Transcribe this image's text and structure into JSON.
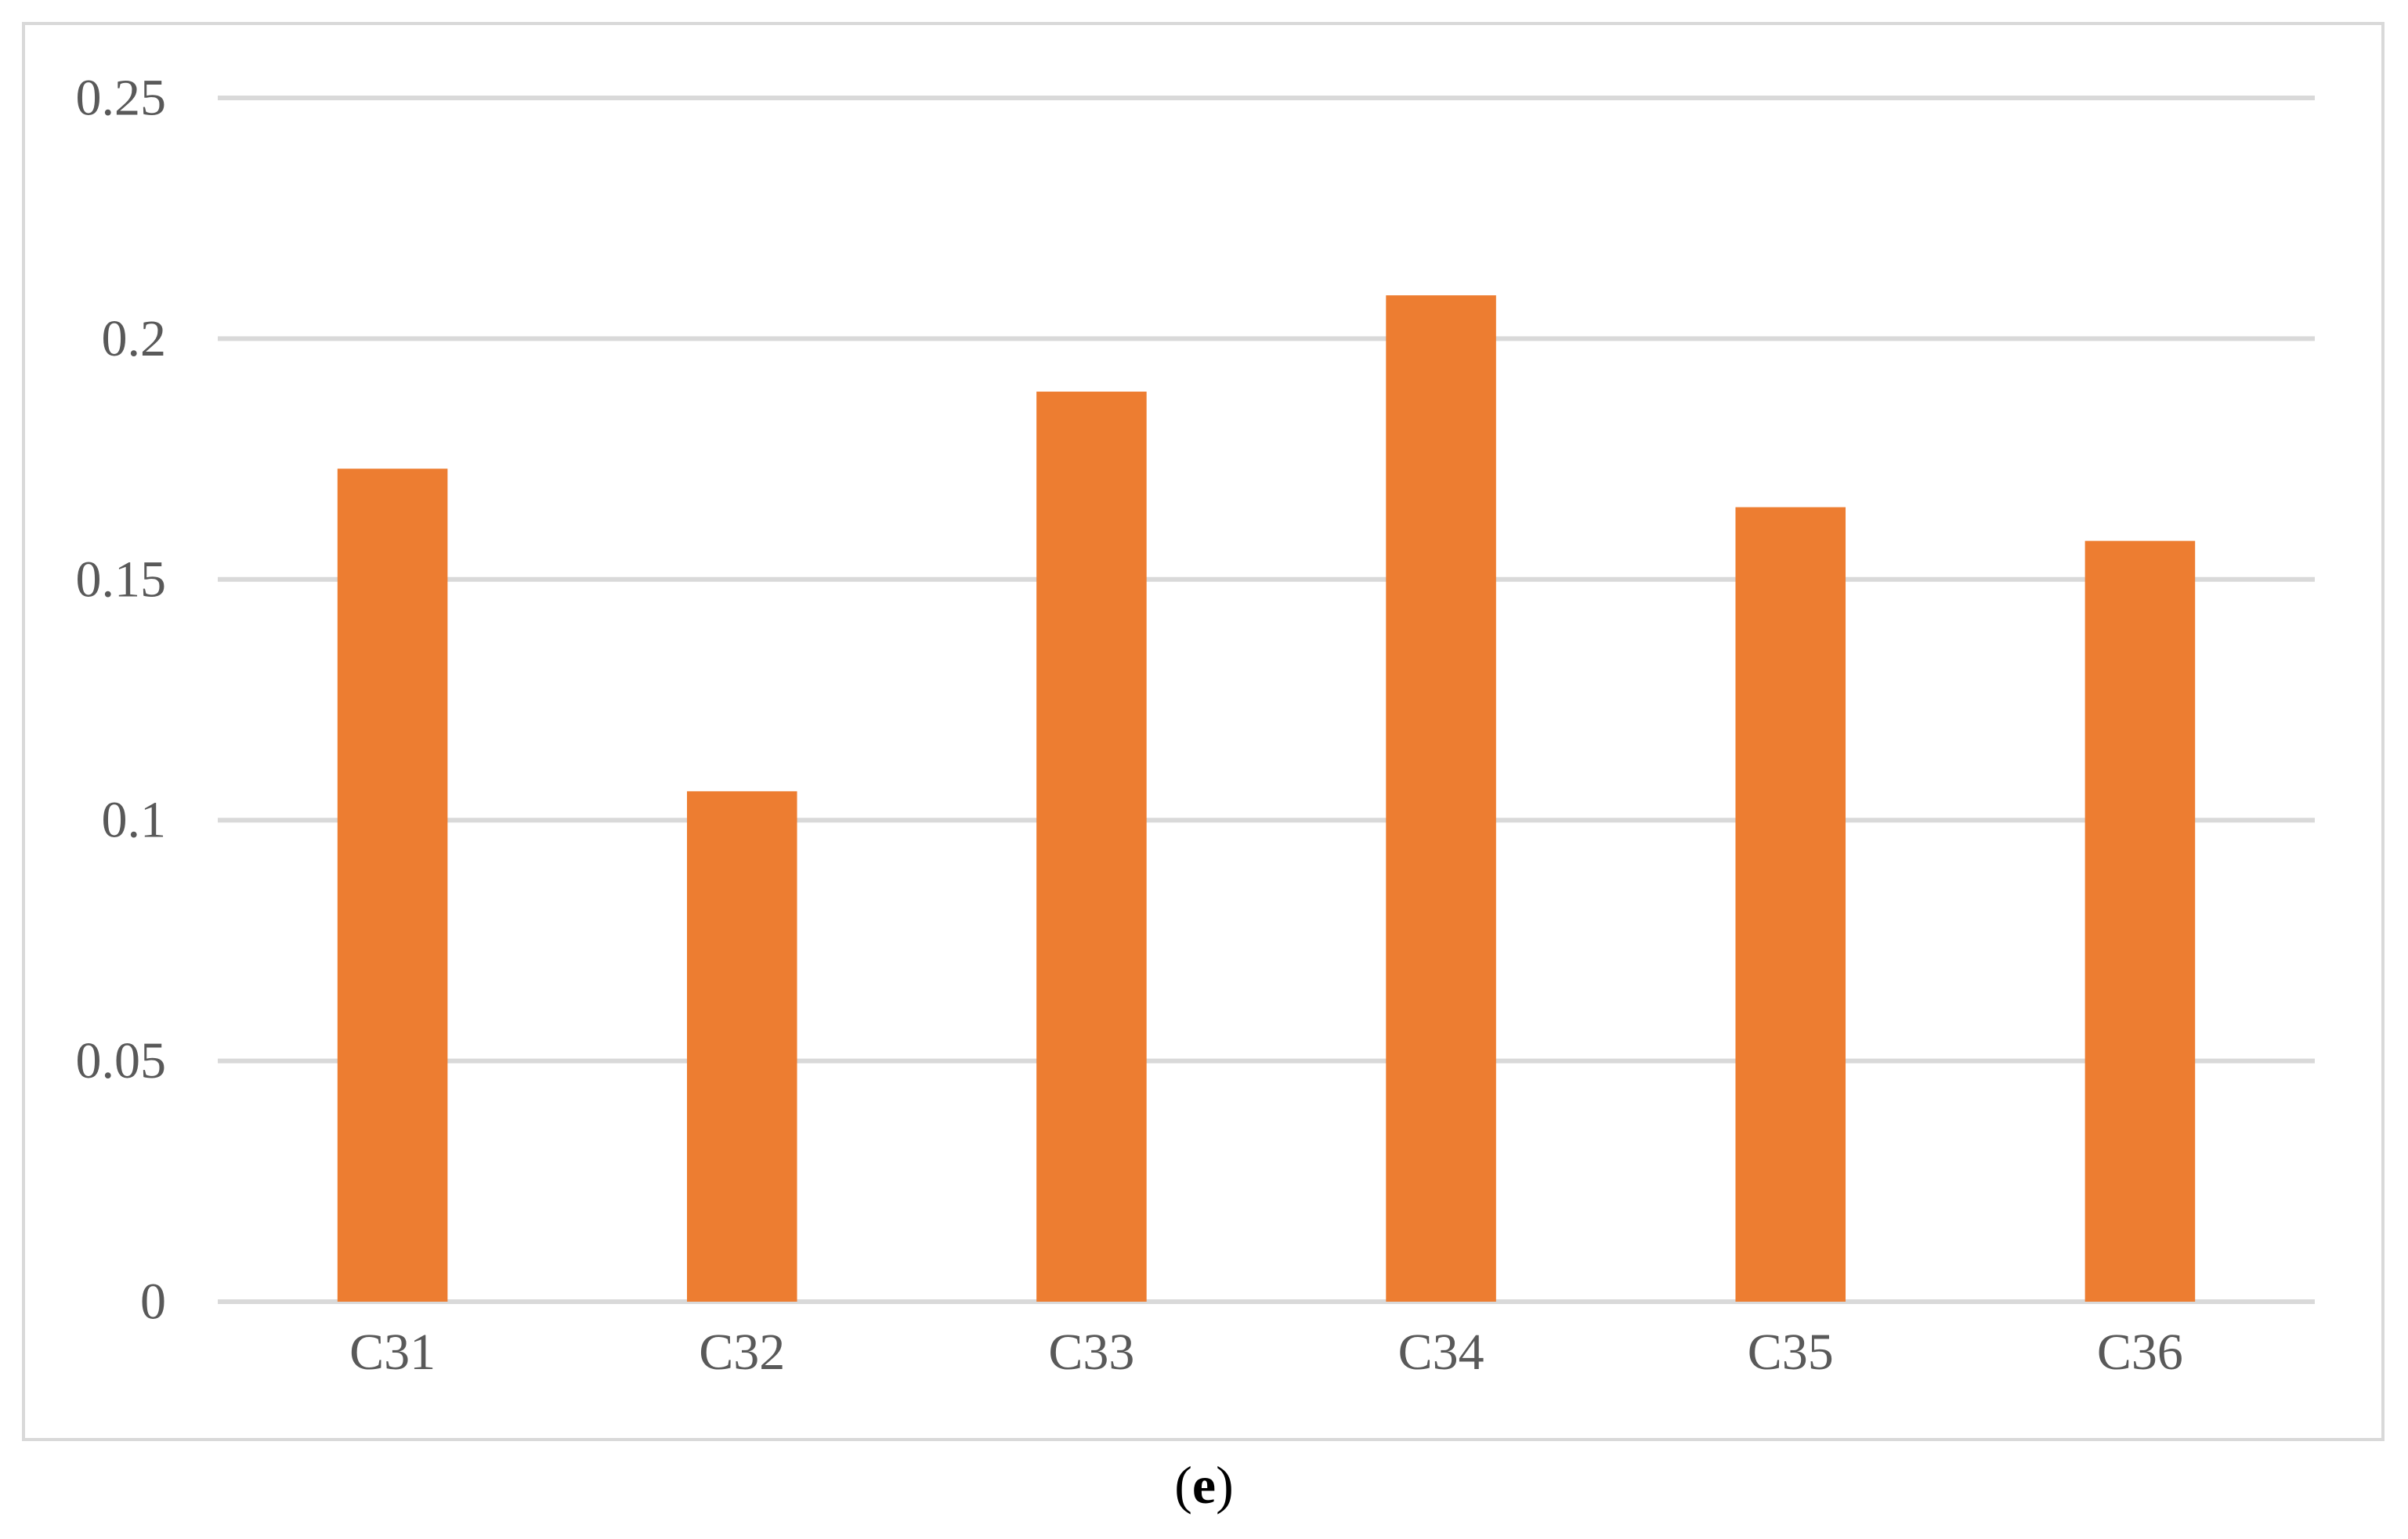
{
  "caption": {
    "open_paren": "(",
    "letter": "e",
    "close_paren": ")"
  },
  "chart_data": {
    "type": "bar",
    "categories": [
      "C31",
      "C32",
      "C33",
      "C34",
      "C35",
      "C36"
    ],
    "values": [
      0.173,
      0.106,
      0.189,
      0.209,
      0.165,
      0.158
    ],
    "ylim": [
      0,
      0.25
    ],
    "yticks": [
      0,
      0.05,
      0.1,
      0.15,
      0.2,
      0.25
    ],
    "ytick_labels": [
      "0",
      "0.05",
      "0.1",
      "0.15",
      "0.2",
      "0.25"
    ],
    "grid": true,
    "legend": "none",
    "bar_color": "#ED7D31",
    "grid_color": "#D9D9D9",
    "tick_label_color": "#595959"
  }
}
